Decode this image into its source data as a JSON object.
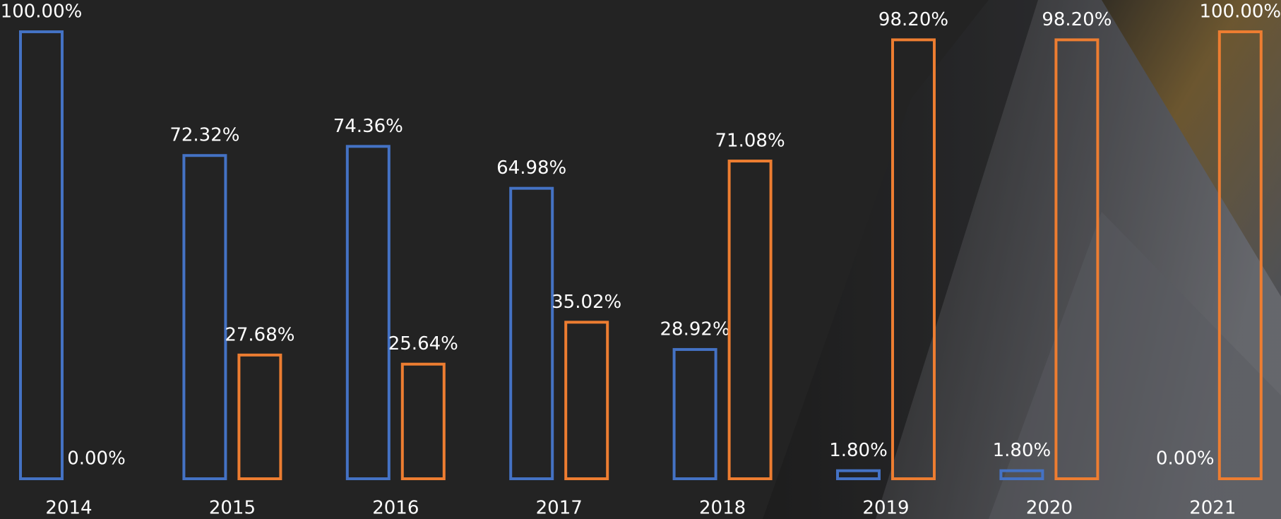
{
  "chart_data": {
    "type": "bar",
    "categories": [
      "2014",
      "2015",
      "2016",
      "2017",
      "2018",
      "2019",
      "2020",
      "2021"
    ],
    "series": [
      {
        "color": "#4472c4",
        "values": [
          100,
          72.32,
          74.36,
          64.98,
          28.92,
          1.8,
          1.8,
          0
        ],
        "value_labels": [
          "100.00%",
          "72.32%",
          "74.36%",
          "64.98%",
          "28.92%",
          "1.80%",
          "1.80%",
          "0.00%"
        ]
      },
      {
        "color": "#ed7d31",
        "values": [
          0,
          27.68,
          25.64,
          35.02,
          71.08,
          98.2,
          98.2,
          100
        ],
        "value_labels": [
          "0.00%",
          "27.68%",
          "25.64%",
          "35.02%",
          "71.08%",
          "98.20%",
          "98.20%",
          "100.00%"
        ]
      }
    ],
    "ylim": [
      0,
      100
    ]
  }
}
